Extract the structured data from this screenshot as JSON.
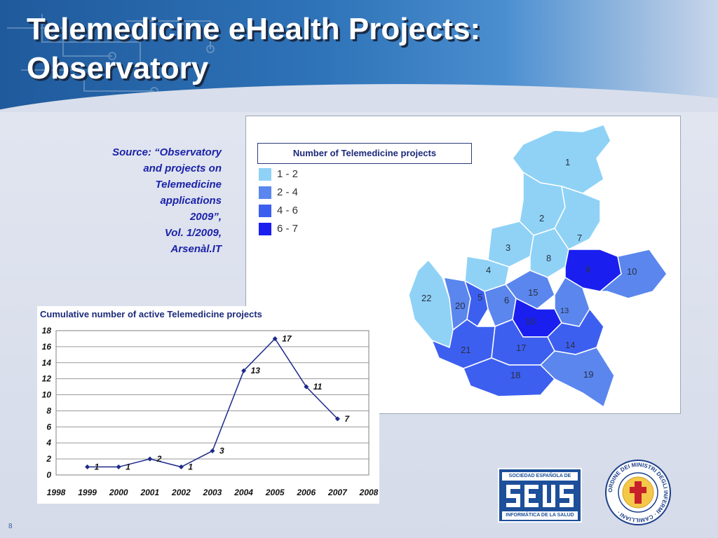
{
  "slide": {
    "title_line1": "Telemedicine eHealth Projects:",
    "title_line2": "Observatory",
    "source_lines": [
      "Source: “Observatory",
      "and projects on",
      "Telemedicine",
      "applications",
      "2009”,",
      "Vol. 1/2009,",
      "Arsenàl.IT"
    ],
    "page_number": "8"
  },
  "map": {
    "legend_title": "Number of Telemedicine projects",
    "legend": [
      {
        "label": "1 - 2",
        "color": "#8fd2f6"
      },
      {
        "label": "2 - 4",
        "color": "#5a86ee"
      },
      {
        "label": "4 - 6",
        "color": "#3d5ff0"
      },
      {
        "label": "6 - 7",
        "color": "#1a1ff0"
      }
    ],
    "region_labels": [
      "1",
      "2",
      "3",
      "4",
      "7",
      "8",
      "9",
      "10",
      "5",
      "6",
      "13",
      "14",
      "15",
      "16",
      "17",
      "18",
      "19",
      "20",
      "21",
      "22"
    ]
  },
  "chart_data": {
    "type": "line",
    "title": "Cumulative number of active Telemedicine projects",
    "x": [
      1999,
      2000,
      2001,
      2002,
      2003,
      2004,
      2005,
      2006,
      2007
    ],
    "values": [
      1,
      1,
      2,
      1,
      3,
      13,
      17,
      11,
      7
    ],
    "data_labels": [
      "1",
      "1",
      "2",
      "1",
      "3",
      "13",
      "17",
      "11",
      "7"
    ],
    "x_ticks": [
      "1998",
      "1999",
      "2000",
      "2001",
      "2002",
      "2003",
      "2004",
      "2005",
      "2006",
      "2007",
      "2008"
    ],
    "y_ticks": [
      "0",
      "2",
      "4",
      "6",
      "8",
      "10",
      "12",
      "14",
      "16",
      "18"
    ],
    "xlim": [
      1998,
      2008
    ],
    "ylim": [
      0,
      18
    ],
    "grid": true,
    "line_color": "#1c2a8a"
  },
  "logos": {
    "ses_top": "SOCIEDAD ESPAÑOLA DE",
    "ses_bottom": "INFORMÁTICA DE LA SALUD",
    "camilliani_text": "ORDINE DEI MINISTRI DEGLI INFERMI · CAMILLIANI ·"
  }
}
